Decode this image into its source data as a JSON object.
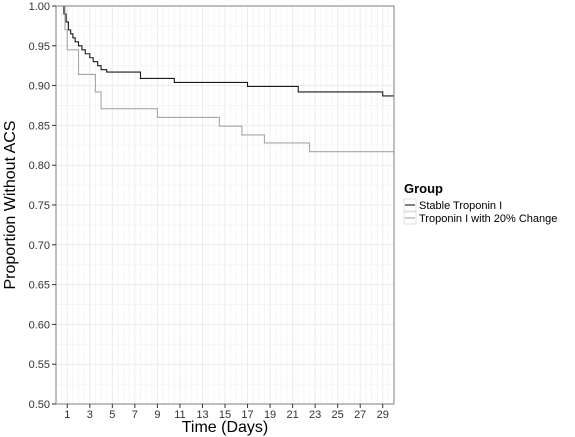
{
  "chart_data": {
    "type": "line",
    "title": "",
    "xlabel": "Time (Days)",
    "ylabel": "Proportion Without ACS",
    "xlim": [
      0,
      30
    ],
    "ylim": [
      0.5,
      1.0
    ],
    "x_ticks": [
      1,
      3,
      5,
      7,
      9,
      11,
      13,
      15,
      17,
      19,
      21,
      23,
      25,
      27,
      29
    ],
    "y_ticks": [
      0.5,
      0.55,
      0.6,
      0.65,
      0.7,
      0.75,
      0.8,
      0.85,
      0.9,
      0.95,
      1.0
    ],
    "y_tick_labels": [
      "0.50",
      "0.55",
      "0.60",
      "0.65",
      "0.70",
      "0.75",
      "0.80",
      "0.85",
      "0.90",
      "0.95",
      "1.00"
    ],
    "grid": true,
    "legend_title": "Group",
    "legend_position": "right",
    "series": [
      {
        "name": "Stable Troponin I",
        "color": "#1a1a1a",
        "step": true,
        "x": [
          0.5,
          0.7,
          0.9,
          1.1,
          1.3,
          1.5,
          1.7,
          2.0,
          2.3,
          2.6,
          3.0,
          3.3,
          3.7,
          4.0,
          4.5,
          7.5,
          10.5,
          17.0,
          21.5,
          29.0,
          30.0
        ],
        "y": [
          1.0,
          0.99,
          0.98,
          0.97,
          0.965,
          0.96,
          0.955,
          0.95,
          0.945,
          0.94,
          0.935,
          0.93,
          0.925,
          0.92,
          0.917,
          0.909,
          0.904,
          0.899,
          0.892,
          0.887,
          0.887
        ]
      },
      {
        "name": "Troponin I with 20% Change",
        "color": "#a6a6a6",
        "step": true,
        "x": [
          0.5,
          0.8,
          1.0,
          2.0,
          3.5,
          4.0,
          9.0,
          14.5,
          16.5,
          18.5,
          22.5,
          30.0
        ],
        "y": [
          1.0,
          0.97,
          0.945,
          0.914,
          0.892,
          0.871,
          0.86,
          0.849,
          0.838,
          0.828,
          0.817,
          0.817
        ]
      }
    ]
  }
}
